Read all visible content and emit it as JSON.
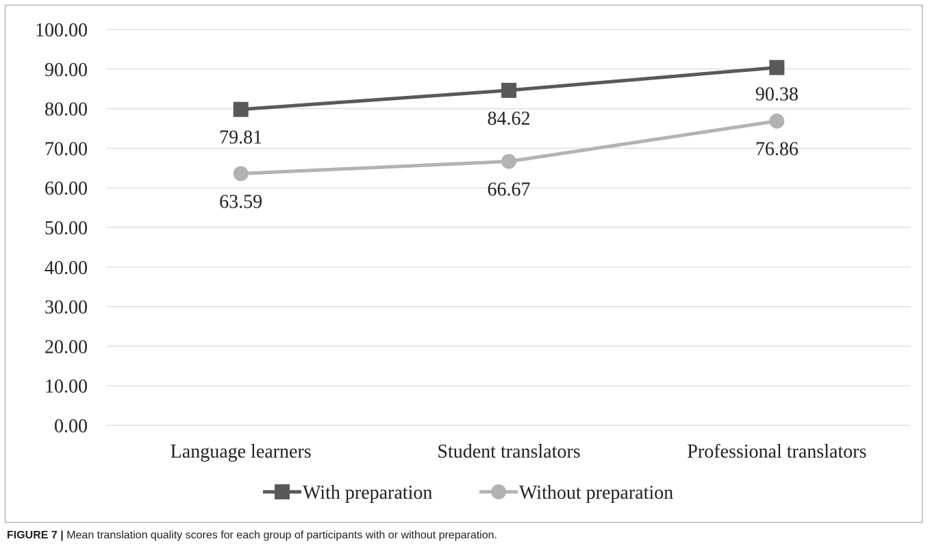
{
  "caption": {
    "label": "FIGURE 7",
    "separator": "|",
    "text": "Mean translation quality scores for each group of participants with or without preparation."
  },
  "chart_data": {
    "type": "line",
    "title": "",
    "xlabel": "",
    "ylabel": "",
    "categories": [
      "Language learners",
      "Student translators",
      "Professional translators"
    ],
    "ylim": [
      0,
      100
    ],
    "yticks": [
      "0.00",
      "10.00",
      "20.00",
      "30.00",
      "40.00",
      "50.00",
      "60.00",
      "70.00",
      "80.00",
      "90.00",
      "100.00"
    ],
    "grid": true,
    "legend_position": "bottom",
    "series": [
      {
        "name": "With preparation",
        "values": [
          79.81,
          84.62,
          90.38
        ],
        "labels": [
          "79.81",
          "84.62",
          "90.38"
        ],
        "marker": "square",
        "color": "#595959"
      },
      {
        "name": "Without preparation",
        "values": [
          63.59,
          66.67,
          76.86
        ],
        "labels": [
          "63.59",
          "66.67",
          "76.86"
        ],
        "marker": "circle",
        "color": "#b3b3b3"
      }
    ]
  }
}
